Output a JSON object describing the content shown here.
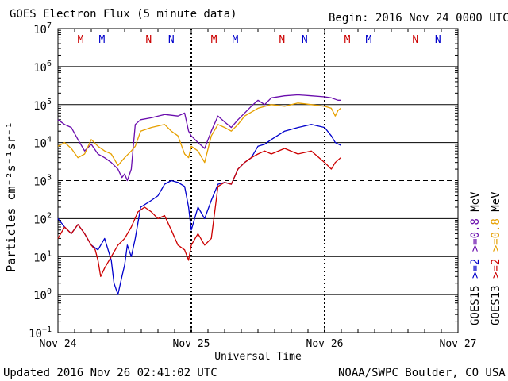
{
  "header": {
    "title": "GOES Electron Flux (5 minute data)",
    "begin": "Begin: 2016 Nov 24 0000 UTC"
  },
  "footer": {
    "updated": "Updated 2016 Nov 26 02:41:02 UTC",
    "credit": "NOAA/SWPC Boulder, CO USA"
  },
  "chart_data": {
    "type": "line",
    "ylabel": "Particles cm⁻²s⁻¹sr⁻¹",
    "xlabel": "Universal Time",
    "y_scale": "log",
    "ylim": [
      0.1,
      10000000
    ],
    "y_ticks": [
      {
        "base": "10",
        "exp": "7"
      },
      {
        "base": "10",
        "exp": "6"
      },
      {
        "base": "10",
        "exp": "5"
      },
      {
        "base": "10",
        "exp": "4"
      },
      {
        "base": "10",
        "exp": "3"
      },
      {
        "base": "10",
        "exp": "2"
      },
      {
        "base": "10",
        "exp": "1"
      },
      {
        "base": "10",
        "exp": "0"
      },
      {
        "base": "10",
        "exp": "−1"
      }
    ],
    "x_ticks": [
      "Nov 24",
      "Nov 25",
      "Nov 26",
      "Nov 27"
    ],
    "xlim_days": [
      0,
      3
    ],
    "threshold_dashed": 1000,
    "day_markers": [
      {
        "day": 0,
        "labels": [
          {
            "t": "M",
            "c": "#cc0000"
          },
          {
            "t": "M",
            "c": "#0000cc"
          },
          {
            "t": "N",
            "c": "#cc0000"
          },
          {
            "t": "N",
            "c": "#0000cc"
          }
        ]
      },
      {
        "day": 1,
        "labels": [
          {
            "t": "M",
            "c": "#cc0000"
          },
          {
            "t": "M",
            "c": "#0000cc"
          },
          {
            "t": "N",
            "c": "#cc0000"
          },
          {
            "t": "N",
            "c": "#0000cc"
          }
        ]
      },
      {
        "day": 2,
        "labels": [
          {
            "t": "M",
            "c": "#cc0000"
          },
          {
            "t": "M",
            "c": "#0000cc"
          },
          {
            "t": "N",
            "c": "#cc0000"
          },
          {
            "t": "N",
            "c": "#0000cc"
          }
        ]
      }
    ],
    "marker_offsets_days": [
      0.17,
      0.33,
      0.68,
      0.85
    ],
    "legend": {
      "col1": [
        {
          "text": "GOES15",
          "color": "#000000"
        },
        {
          "text": ">=2",
          "color": "#0000cc"
        },
        {
          "text": ">=0.8",
          "color": "#6a0dad"
        },
        {
          "text": "MeV",
          "color": "#000000"
        }
      ],
      "col2": [
        {
          "text": "GOES13",
          "color": "#000000"
        },
        {
          "text": ">=2",
          "color": "#cc0000"
        },
        {
          "text": ">=0.8",
          "color": "#e6a000"
        },
        {
          "text": "MeV",
          "color": "#000000"
        }
      ]
    },
    "series": [
      {
        "name": "GOES15 >=0.8 MeV",
        "color": "#6a0dad",
        "points": [
          [
            0.0,
            40000
          ],
          [
            0.05,
            30000
          ],
          [
            0.1,
            25000
          ],
          [
            0.15,
            12000
          ],
          [
            0.2,
            6000
          ],
          [
            0.25,
            9000
          ],
          [
            0.3,
            5000
          ],
          [
            0.35,
            4000
          ],
          [
            0.4,
            3000
          ],
          [
            0.45,
            2000
          ],
          [
            0.48,
            1200
          ],
          [
            0.5,
            1500
          ],
          [
            0.52,
            1000
          ],
          [
            0.55,
            2000
          ],
          [
            0.58,
            30000
          ],
          [
            0.62,
            40000
          ],
          [
            0.7,
            45000
          ],
          [
            0.8,
            55000
          ],
          [
            0.9,
            50000
          ],
          [
            0.95,
            60000
          ],
          [
            0.98,
            20000
          ],
          [
            1.0,
            15000
          ],
          [
            1.05,
            10000
          ],
          [
            1.1,
            7000
          ],
          [
            1.15,
            20000
          ],
          [
            1.2,
            50000
          ],
          [
            1.25,
            35000
          ],
          [
            1.3,
            25000
          ],
          [
            1.35,
            40000
          ],
          [
            1.4,
            60000
          ],
          [
            1.45,
            90000
          ],
          [
            1.5,
            130000
          ],
          [
            1.55,
            100000
          ],
          [
            1.6,
            150000
          ],
          [
            1.7,
            170000
          ],
          [
            1.8,
            180000
          ],
          [
            1.9,
            170000
          ],
          [
            2.0,
            160000
          ],
          [
            2.05,
            150000
          ],
          [
            2.1,
            130000
          ],
          [
            2.12,
            130000
          ]
        ]
      },
      {
        "name": "GOES13 >=0.8 MeV",
        "color": "#e6a000",
        "points": [
          [
            0.0,
            8000
          ],
          [
            0.05,
            10000
          ],
          [
            0.1,
            7000
          ],
          [
            0.15,
            4000
          ],
          [
            0.2,
            5000
          ],
          [
            0.25,
            12000
          ],
          [
            0.3,
            8000
          ],
          [
            0.35,
            6000
          ],
          [
            0.4,
            5000
          ],
          [
            0.45,
            2500
          ],
          [
            0.5,
            4000
          ],
          [
            0.55,
            6000
          ],
          [
            0.58,
            8000
          ],
          [
            0.62,
            20000
          ],
          [
            0.7,
            25000
          ],
          [
            0.8,
            30000
          ],
          [
            0.85,
            20000
          ],
          [
            0.9,
            15000
          ],
          [
            0.95,
            5000
          ],
          [
            0.98,
            4000
          ],
          [
            1.0,
            8000
          ],
          [
            1.05,
            6000
          ],
          [
            1.1,
            3000
          ],
          [
            1.15,
            15000
          ],
          [
            1.2,
            30000
          ],
          [
            1.25,
            25000
          ],
          [
            1.3,
            20000
          ],
          [
            1.35,
            30000
          ],
          [
            1.4,
            50000
          ],
          [
            1.5,
            80000
          ],
          [
            1.6,
            100000
          ],
          [
            1.7,
            90000
          ],
          [
            1.8,
            110000
          ],
          [
            1.9,
            100000
          ],
          [
            2.0,
            90000
          ],
          [
            2.05,
            80000
          ],
          [
            2.08,
            50000
          ],
          [
            2.1,
            70000
          ],
          [
            2.12,
            80000
          ]
        ]
      },
      {
        "name": "GOES15 >=2 MeV",
        "color": "#0000cc",
        "points": [
          [
            0.0,
            100
          ],
          [
            0.05,
            60
          ],
          [
            0.1,
            40
          ],
          [
            0.15,
            70
          ],
          [
            0.2,
            40
          ],
          [
            0.25,
            20
          ],
          [
            0.3,
            15
          ],
          [
            0.35,
            30
          ],
          [
            0.4,
            8
          ],
          [
            0.42,
            2
          ],
          [
            0.45,
            1
          ],
          [
            0.48,
            3
          ],
          [
            0.5,
            6
          ],
          [
            0.52,
            20
          ],
          [
            0.55,
            10
          ],
          [
            0.58,
            30
          ],
          [
            0.62,
            200
          ],
          [
            0.7,
            300
          ],
          [
            0.75,
            400
          ],
          [
            0.8,
            800
          ],
          [
            0.85,
            1000
          ],
          [
            0.9,
            900
          ],
          [
            0.95,
            700
          ],
          [
            0.98,
            200
          ],
          [
            1.0,
            50
          ],
          [
            1.05,
            200
          ],
          [
            1.1,
            100
          ],
          [
            1.15,
            300
          ],
          [
            1.2,
            800
          ],
          [
            1.25,
            900
          ],
          [
            1.3,
            800
          ],
          [
            1.35,
            2000
          ],
          [
            1.4,
            3000
          ],
          [
            1.45,
            4000
          ],
          [
            1.5,
            8000
          ],
          [
            1.55,
            9000
          ],
          [
            1.6,
            12000
          ],
          [
            1.7,
            20000
          ],
          [
            1.8,
            25000
          ],
          [
            1.9,
            30000
          ],
          [
            2.0,
            25000
          ],
          [
            2.05,
            15000
          ],
          [
            2.08,
            10000
          ],
          [
            2.12,
            8500
          ]
        ]
      },
      {
        "name": "GOES13 >=2 MeV",
        "color": "#cc0000",
        "points": [
          [
            0.0,
            30
          ],
          [
            0.05,
            60
          ],
          [
            0.1,
            40
          ],
          [
            0.15,
            70
          ],
          [
            0.2,
            40
          ],
          [
            0.25,
            20
          ],
          [
            0.28,
            15
          ],
          [
            0.3,
            8
          ],
          [
            0.32,
            3
          ],
          [
            0.35,
            5
          ],
          [
            0.4,
            10
          ],
          [
            0.45,
            20
          ],
          [
            0.5,
            30
          ],
          [
            0.55,
            60
          ],
          [
            0.6,
            150
          ],
          [
            0.65,
            200
          ],
          [
            0.7,
            150
          ],
          [
            0.75,
            100
          ],
          [
            0.8,
            120
          ],
          [
            0.85,
            50
          ],
          [
            0.9,
            20
          ],
          [
            0.95,
            15
          ],
          [
            0.98,
            8
          ],
          [
            1.0,
            20
          ],
          [
            1.05,
            40
          ],
          [
            1.1,
            20
          ],
          [
            1.15,
            30
          ],
          [
            1.2,
            700
          ],
          [
            1.25,
            900
          ],
          [
            1.3,
            800
          ],
          [
            1.35,
            2000
          ],
          [
            1.4,
            3000
          ],
          [
            1.45,
            4000
          ],
          [
            1.5,
            5000
          ],
          [
            1.55,
            6000
          ],
          [
            1.6,
            5000
          ],
          [
            1.7,
            7000
          ],
          [
            1.8,
            5000
          ],
          [
            1.9,
            6000
          ],
          [
            2.0,
            3000
          ],
          [
            2.05,
            2000
          ],
          [
            2.08,
            3000
          ],
          [
            2.12,
            4000
          ]
        ]
      }
    ]
  }
}
